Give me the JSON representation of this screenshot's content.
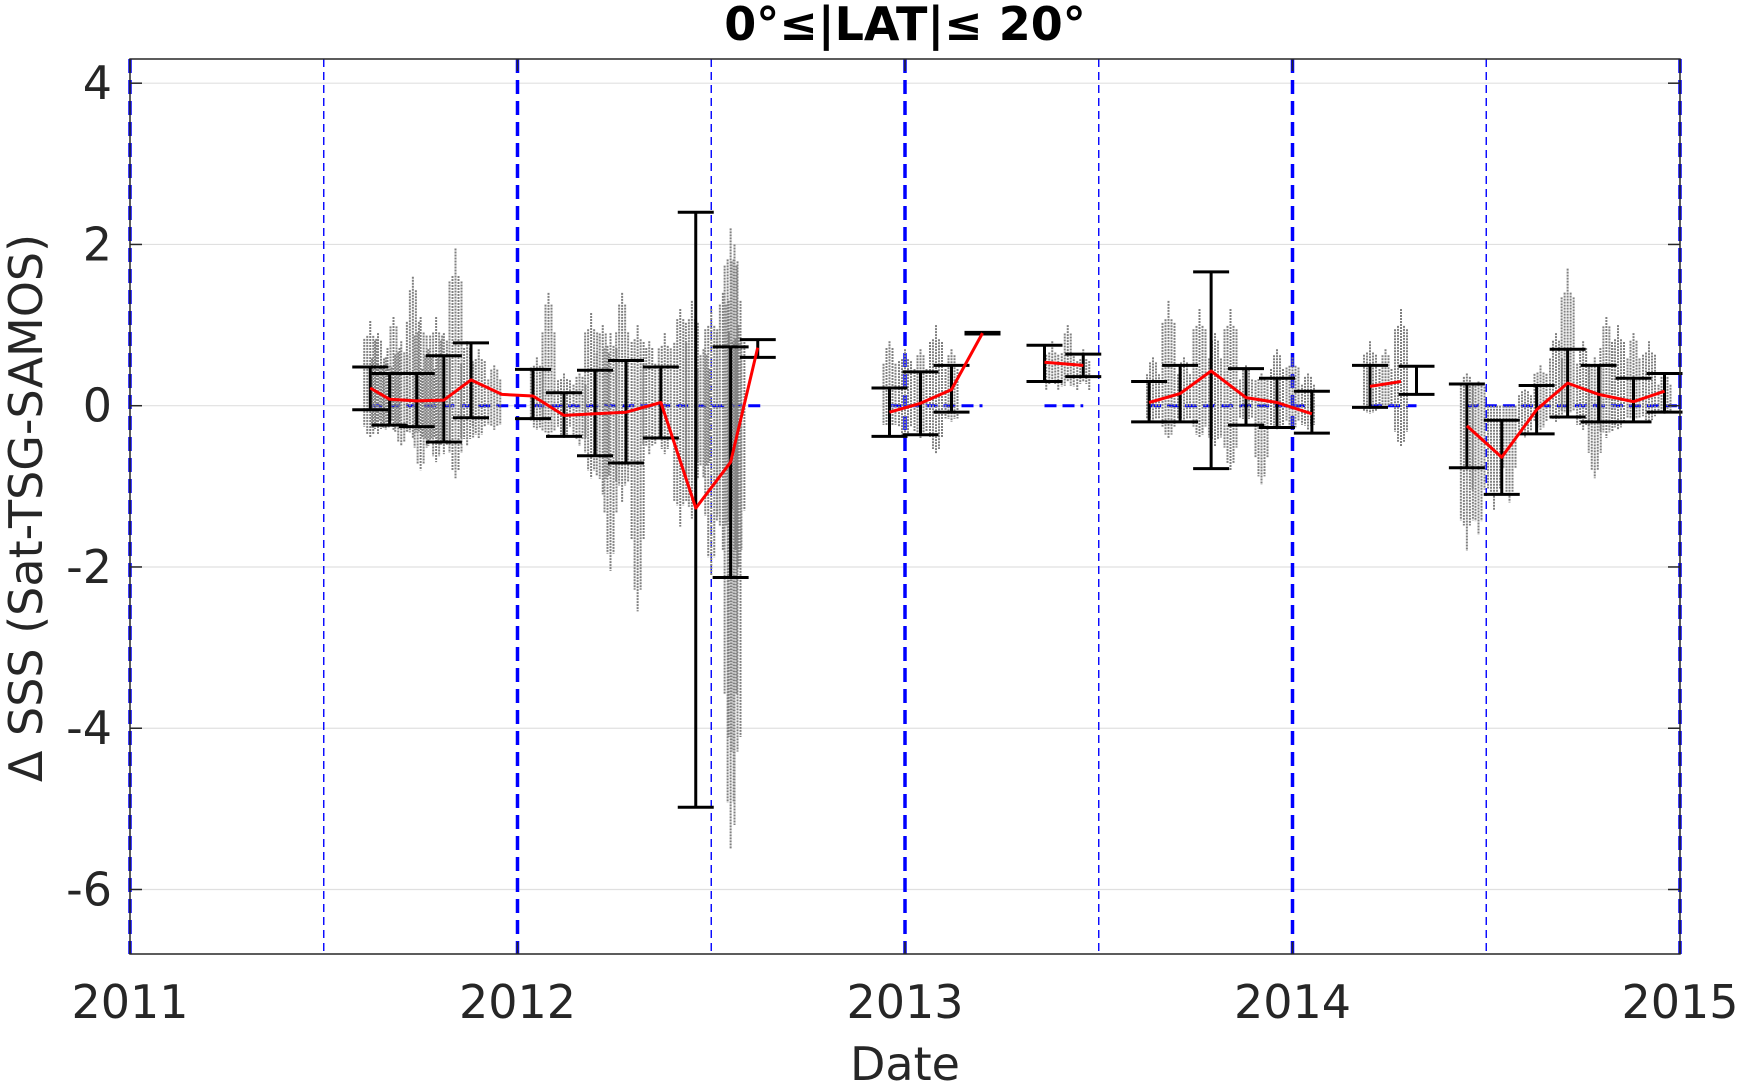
{
  "chart_data": {
    "type": "scatter",
    "title": "0°≤|LAT|≤ 20°",
    "xlabel": "Date",
    "ylabel": "Δ SSS (Sat-TSG-SAMOS)",
    "xlim": [
      2011,
      2015
    ],
    "ylim": [
      -6.8,
      4.3
    ],
    "xticks": [
      2011,
      2012,
      2013,
      2014,
      2015
    ],
    "yticks": [
      -6,
      -4,
      -2,
      0,
      2,
      4
    ],
    "grid": "horizontal",
    "legend": "none",
    "colors": {
      "points": "#808080",
      "mean_line": "#ff0000",
      "error_bars": "#000000",
      "reference": "#0000ff",
      "grid": "#e0e0e0"
    },
    "year_lines": [
      2011,
      2012,
      2013,
      2014,
      2015
    ],
    "half_year_lines": [
      2011.5,
      2012.5,
      2013.5,
      2014.5
    ],
    "zero_reference_segments": [
      [
        2011.62,
        2012.63
      ],
      [
        2012.96,
        2013.2
      ],
      [
        2013.36,
        2013.46
      ],
      [
        2013.63,
        2014.05
      ],
      [
        2014.2,
        2014.32
      ],
      [
        2014.45,
        2015.0
      ]
    ],
    "error_bars": [
      {
        "x": 2011.62,
        "upper": 0.48,
        "lower": -0.05
      },
      {
        "x": 2011.67,
        "upper": 0.4,
        "lower": -0.24
      },
      {
        "x": 2011.74,
        "upper": 0.4,
        "lower": -0.26
      },
      {
        "x": 2011.81,
        "upper": 0.62,
        "lower": -0.45
      },
      {
        "x": 2011.88,
        "upper": 0.78,
        "lower": -0.15
      },
      {
        "x": 2012.04,
        "upper": 0.45,
        "lower": -0.16
      },
      {
        "x": 2012.12,
        "upper": 0.16,
        "lower": -0.38
      },
      {
        "x": 2012.2,
        "upper": 0.44,
        "lower": -0.62
      },
      {
        "x": 2012.28,
        "upper": 0.56,
        "lower": -0.71
      },
      {
        "x": 2012.37,
        "upper": 0.48,
        "lower": -0.4
      },
      {
        "x": 2012.46,
        "upper": 2.4,
        "lower": -4.98
      },
      {
        "x": 2012.55,
        "upper": 0.73,
        "lower": -2.13
      },
      {
        "x": 2012.62,
        "upper": 0.82,
        "lower": 0.6
      },
      {
        "x": 2012.96,
        "upper": 0.22,
        "lower": -0.38
      },
      {
        "x": 2013.04,
        "upper": 0.42,
        "lower": -0.36
      },
      {
        "x": 2013.12,
        "upper": 0.5,
        "lower": -0.08
      },
      {
        "x": 2013.2,
        "upper": 0.91,
        "lower": 0.89
      },
      {
        "x": 2013.36,
        "upper": 0.75,
        "lower": 0.3
      },
      {
        "x": 2013.46,
        "upper": 0.64,
        "lower": 0.36
      },
      {
        "x": 2013.63,
        "upper": 0.3,
        "lower": -0.2
      },
      {
        "x": 2013.71,
        "upper": 0.5,
        "lower": -0.2
      },
      {
        "x": 2013.79,
        "upper": 1.66,
        "lower": -0.78
      },
      {
        "x": 2013.88,
        "upper": 0.46,
        "lower": -0.24
      },
      {
        "x": 2013.96,
        "upper": 0.34,
        "lower": -0.27
      },
      {
        "x": 2014.05,
        "upper": 0.18,
        "lower": -0.34
      },
      {
        "x": 2014.2,
        "upper": 0.5,
        "lower": -0.02
      },
      {
        "x": 2014.32,
        "upper": 0.49,
        "lower": 0.14
      },
      {
        "x": 2014.45,
        "upper": 0.27,
        "lower": -0.77
      },
      {
        "x": 2014.54,
        "upper": -0.18,
        "lower": -1.1
      },
      {
        "x": 2014.63,
        "upper": 0.25,
        "lower": -0.35
      },
      {
        "x": 2014.71,
        "upper": 0.7,
        "lower": -0.14
      },
      {
        "x": 2014.79,
        "upper": 0.5,
        "lower": -0.2
      },
      {
        "x": 2014.88,
        "upper": 0.34,
        "lower": -0.2
      },
      {
        "x": 2014.96,
        "upper": 0.4,
        "lower": -0.08
      }
    ],
    "mean_line_segments": [
      [
        [
          2011.62,
          0.22
        ],
        [
          2011.67,
          0.08
        ],
        [
          2011.74,
          0.06
        ],
        [
          2011.81,
          0.07
        ],
        [
          2011.88,
          0.32
        ],
        [
          2011.96,
          0.14
        ],
        [
          2012.04,
          0.12
        ],
        [
          2012.12,
          -0.12
        ],
        [
          2012.2,
          -0.1
        ],
        [
          2012.28,
          -0.08
        ],
        [
          2012.37,
          0.04
        ],
        [
          2012.46,
          -1.27
        ],
        [
          2012.55,
          -0.7
        ],
        [
          2012.62,
          0.72
        ]
      ],
      [
        [
          2012.96,
          -0.08
        ],
        [
          2013.04,
          0.03
        ],
        [
          2013.12,
          0.2
        ],
        [
          2013.2,
          0.9
        ]
      ],
      [
        [
          2013.36,
          0.54
        ],
        [
          2013.46,
          0.5
        ]
      ],
      [
        [
          2013.63,
          0.04
        ],
        [
          2013.71,
          0.15
        ],
        [
          2013.79,
          0.43
        ],
        [
          2013.88,
          0.1
        ],
        [
          2013.96,
          0.04
        ],
        [
          2014.05,
          -0.1
        ]
      ],
      [
        [
          2014.2,
          0.24
        ],
        [
          2014.28,
          0.3
        ]
      ],
      [
        [
          2014.45,
          -0.25
        ],
        [
          2014.54,
          -0.64
        ],
        [
          2014.63,
          -0.05
        ],
        [
          2014.71,
          0.28
        ],
        [
          2014.79,
          0.14
        ],
        [
          2014.88,
          0.05
        ],
        [
          2014.96,
          0.18
        ]
      ]
    ],
    "scatter_columns": [
      {
        "x": 2011.62,
        "hi": 1.05,
        "lo": -0.4
      },
      {
        "x": 2011.64,
        "hi": 0.9,
        "lo": -0.35
      },
      {
        "x": 2011.66,
        "hi": 0.6,
        "lo": -0.3
      },
      {
        "x": 2011.68,
        "hi": 1.1,
        "lo": -0.3
      },
      {
        "x": 2011.7,
        "hi": 0.8,
        "lo": -0.5
      },
      {
        "x": 2011.73,
        "hi": 1.6,
        "lo": -0.4
      },
      {
        "x": 2011.75,
        "hi": 1.1,
        "lo": -0.8
      },
      {
        "x": 2011.77,
        "hi": 0.7,
        "lo": -0.5
      },
      {
        "x": 2011.79,
        "hi": 1.1,
        "lo": -0.7
      },
      {
        "x": 2011.81,
        "hi": 0.9,
        "lo": -0.6
      },
      {
        "x": 2011.84,
        "hi": 1.95,
        "lo": -0.9
      },
      {
        "x": 2011.87,
        "hi": 0.8,
        "lo": -0.5
      },
      {
        "x": 2011.9,
        "hi": 0.7,
        "lo": -0.4
      },
      {
        "x": 2011.94,
        "hi": 0.5,
        "lo": -0.3
      },
      {
        "x": 2012.05,
        "hi": 0.6,
        "lo": -0.3
      },
      {
        "x": 2012.08,
        "hi": 1.4,
        "lo": -0.4
      },
      {
        "x": 2012.12,
        "hi": 0.4,
        "lo": -0.4
      },
      {
        "x": 2012.16,
        "hi": 0.4,
        "lo": -0.5
      },
      {
        "x": 2012.19,
        "hi": 1.15,
        "lo": -0.9
      },
      {
        "x": 2012.22,
        "hi": 1.0,
        "lo": -1.1
      },
      {
        "x": 2012.24,
        "hi": 0.9,
        "lo": -2.05
      },
      {
        "x": 2012.27,
        "hi": 1.4,
        "lo": -1.2
      },
      {
        "x": 2012.31,
        "hi": 1.0,
        "lo": -2.55
      },
      {
        "x": 2012.34,
        "hi": 0.8,
        "lo": -0.6
      },
      {
        "x": 2012.38,
        "hi": 0.9,
        "lo": -0.6
      },
      {
        "x": 2012.42,
        "hi": 1.2,
        "lo": -1.5
      },
      {
        "x": 2012.45,
        "hi": 1.3,
        "lo": -1.4
      },
      {
        "x": 2012.48,
        "hi": 0.7,
        "lo": -0.9
      },
      {
        "x": 2012.5,
        "hi": 1.2,
        "lo": -2.1
      },
      {
        "x": 2012.53,
        "hi": 1.4,
        "lo": -1.8
      },
      {
        "x": 2012.55,
        "hi": 2.2,
        "lo": -5.5
      },
      {
        "x": 2012.56,
        "hi": 2.0,
        "lo": -5.2
      },
      {
        "x": 2012.57,
        "hi": 1.0,
        "lo": -2.0
      },
      {
        "x": 2012.96,
        "hi": 0.8,
        "lo": -0.3
      },
      {
        "x": 2013.0,
        "hi": 0.7,
        "lo": -0.4
      },
      {
        "x": 2013.04,
        "hi": 0.7,
        "lo": -0.4
      },
      {
        "x": 2013.08,
        "hi": 1.0,
        "lo": -0.6
      },
      {
        "x": 2013.12,
        "hi": 0.7,
        "lo": -0.2
      },
      {
        "x": 2013.38,
        "hi": 0.8,
        "lo": 0.3
      },
      {
        "x": 2013.42,
        "hi": 1.0,
        "lo": 0.3
      },
      {
        "x": 2013.46,
        "hi": 0.7,
        "lo": 0.3
      },
      {
        "x": 2013.64,
        "hi": 0.6,
        "lo": -0.2
      },
      {
        "x": 2013.68,
        "hi": 1.3,
        "lo": -0.4
      },
      {
        "x": 2013.72,
        "hi": 0.6,
        "lo": -0.2
      },
      {
        "x": 2013.76,
        "hi": 1.2,
        "lo": -0.4
      },
      {
        "x": 2013.8,
        "hi": 0.9,
        "lo": -0.5
      },
      {
        "x": 2013.84,
        "hi": 1.2,
        "lo": -0.8
      },
      {
        "x": 2013.88,
        "hi": 0.5,
        "lo": -0.2
      },
      {
        "x": 2013.92,
        "hi": 0.4,
        "lo": -0.98
      },
      {
        "x": 2013.96,
        "hi": 0.7,
        "lo": -0.3
      },
      {
        "x": 2014.0,
        "hi": 0.6,
        "lo": -0.3
      },
      {
        "x": 2014.04,
        "hi": 0.4,
        "lo": -0.3
      },
      {
        "x": 2014.2,
        "hi": 0.8,
        "lo": -0.1
      },
      {
        "x": 2014.24,
        "hi": 0.7,
        "lo": 0.0
      },
      {
        "x": 2014.28,
        "hi": 1.2,
        "lo": -0.5
      },
      {
        "x": 2014.45,
        "hi": 0.4,
        "lo": -1.8
      },
      {
        "x": 2014.48,
        "hi": 0.3,
        "lo": -1.6
      },
      {
        "x": 2014.52,
        "hi": 0.0,
        "lo": -1.3
      },
      {
        "x": 2014.56,
        "hi": 0.0,
        "lo": -1.2
      },
      {
        "x": 2014.6,
        "hi": 0.2,
        "lo": -0.4
      },
      {
        "x": 2014.64,
        "hi": 0.5,
        "lo": -0.3
      },
      {
        "x": 2014.68,
        "hi": 0.9,
        "lo": -0.2
      },
      {
        "x": 2014.71,
        "hi": 1.7,
        "lo": -0.1
      },
      {
        "x": 2014.75,
        "hi": 0.8,
        "lo": -0.3
      },
      {
        "x": 2014.78,
        "hi": 0.6,
        "lo": -0.9
      },
      {
        "x": 2014.81,
        "hi": 1.1,
        "lo": -0.4
      },
      {
        "x": 2014.84,
        "hi": 1.0,
        "lo": -0.3
      },
      {
        "x": 2014.88,
        "hi": 0.9,
        "lo": -0.2
      },
      {
        "x": 2014.92,
        "hi": 0.8,
        "lo": -0.2
      },
      {
        "x": 2014.96,
        "hi": 0.4,
        "lo": -0.1
      }
    ]
  }
}
